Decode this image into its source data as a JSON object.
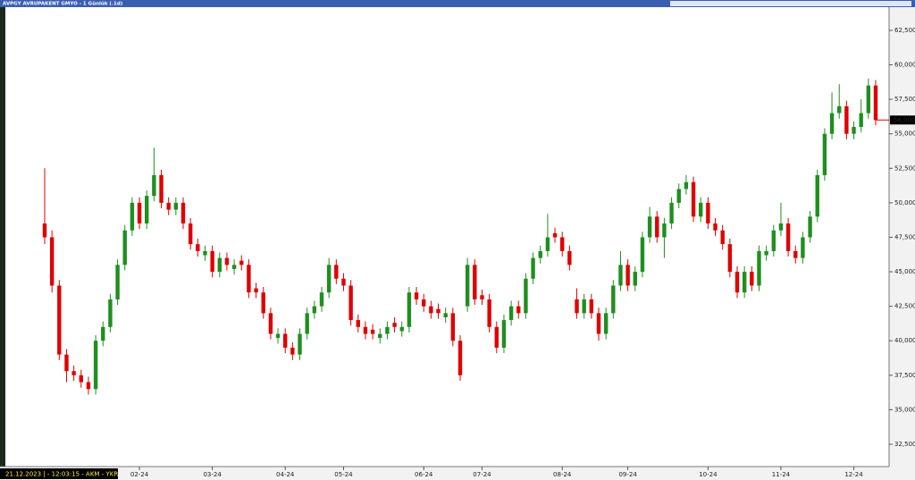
{
  "header": {
    "title": "AVPGY AVRUPAKENT GMYO - 1 Günlük (.1d)"
  },
  "status": "21.12.2023 | - 12:03:15 - AKM - YKR",
  "chart_data": {
    "type": "candlestick",
    "up_color": "#1f8f1f",
    "down_color": "#e00000",
    "last_price": {
      "value": 56000,
      "label": "56,000"
    },
    "ylim": [
      30880,
      64180
    ],
    "yticks": [
      {
        "value": 32500,
        "label": "32,500"
      },
      {
        "value": 35000,
        "label": "35,000"
      },
      {
        "value": 37500,
        "label": "37,500"
      },
      {
        "value": 40000,
        "label": "40,000"
      },
      {
        "value": 42500,
        "label": "42,500"
      },
      {
        "value": 45000,
        "label": "45,000"
      },
      {
        "value": 47500,
        "label": "47,500"
      },
      {
        "value": 50000,
        "label": "50,000"
      },
      {
        "value": 52500,
        "label": "52,500"
      },
      {
        "value": 55000,
        "label": "55,000"
      },
      {
        "value": 57500,
        "label": "57,500"
      },
      {
        "value": 60000,
        "label": "60,000"
      },
      {
        "value": 62500,
        "label": "62,500"
      }
    ],
    "categories": [
      null,
      null,
      null,
      null,
      null,
      null,
      null,
      null,
      null,
      null,
      null,
      null,
      null,
      "02-24",
      null,
      null,
      null,
      null,
      null,
      null,
      null,
      null,
      null,
      "03-24",
      null,
      null,
      null,
      null,
      null,
      null,
      null,
      null,
      null,
      "04-24",
      null,
      null,
      null,
      null,
      null,
      null,
      null,
      "05-24",
      null,
      null,
      null,
      null,
      null,
      null,
      null,
      null,
      null,
      null,
      "06-24",
      null,
      null,
      null,
      null,
      null,
      null,
      null,
      "07-24",
      null,
      null,
      null,
      null,
      null,
      null,
      null,
      null,
      null,
      null,
      "08-24",
      null,
      null,
      null,
      null,
      null,
      null,
      null,
      null,
      "09-24",
      null,
      null,
      null,
      null,
      null,
      null,
      null,
      null,
      null,
      null,
      "10-24",
      null,
      null,
      null,
      null,
      null,
      null,
      null,
      null,
      null,
      "11-24",
      null,
      null,
      null,
      null,
      null,
      null,
      null,
      null,
      null,
      "12-24",
      null,
      null,
      null
    ],
    "open": [
      48500,
      47500,
      44000,
      39000,
      37800,
      37500,
      37000,
      36500,
      40000,
      41000,
      43000,
      45500,
      48000,
      50000,
      48500,
      50500,
      52000,
      50000,
      49500,
      50000,
      48500,
      47000,
      46200,
      46500,
      45000,
      46000,
      45200,
      45800,
      45500,
      43800,
      43500,
      42000,
      40200,
      40500,
      39500,
      39000,
      40500,
      42000,
      42500,
      43500,
      45500,
      44500,
      44000,
      41500,
      41000,
      40800,
      40200,
      40500,
      41300,
      40700,
      41000,
      43500,
      43000,
      42500,
      42300,
      41700,
      42000,
      40000,
      42500,
      45500,
      43300,
      43000,
      41000,
      39500,
      41500,
      42500,
      42000,
      44500,
      46000,
      46500,
      47800,
      47500,
      46500,
      43000,
      42000,
      43000,
      42000,
      40500,
      42000,
      44000,
      45500,
      44000,
      45000,
      47500,
      49000,
      47500,
      48500,
      50000,
      51000,
      51500,
      49000,
      50000,
      48500,
      48000,
      47000,
      45000,
      43500,
      45000,
      44000,
      46200,
      46500,
      48000,
      48500,
      46500,
      46000,
      47500,
      49000,
      52000,
      55000,
      56500,
      57000,
      55000,
      55500,
      56500,
      58500
    ],
    "high": [
      52500,
      48000,
      44400,
      39400,
      38200,
      37900,
      37400,
      40400,
      41400,
      43400,
      45900,
      48400,
      50400,
      50400,
      50900,
      54000,
      52400,
      50400,
      50400,
      50400,
      48900,
      47400,
      46900,
      46900,
      46400,
      46400,
      45900,
      46200,
      45900,
      44200,
      43900,
      42400,
      40900,
      40900,
      39900,
      40900,
      42400,
      42900,
      43900,
      46000,
      45900,
      44900,
      44400,
      41900,
      41400,
      41200,
      40900,
      41400,
      41700,
      41400,
      43900,
      43900,
      43400,
      42900,
      42700,
      42400,
      42400,
      40400,
      46000,
      45900,
      43700,
      43400,
      41400,
      41900,
      42900,
      42900,
      44900,
      46400,
      46900,
      49200,
      48200,
      47900,
      46900,
      43800,
      43400,
      43400,
      42400,
      42400,
      44400,
      46500,
      45900,
      45400,
      47900,
      49700,
      49400,
      48900,
      50400,
      51400,
      52000,
      51900,
      50400,
      50400,
      48900,
      48400,
      47400,
      45400,
      45400,
      45400,
      46900,
      46900,
      48400,
      50000,
      48900,
      46900,
      47900,
      49400,
      52400,
      55400,
      58000,
      58600,
      57400,
      55900,
      57500,
      59000,
      58900
    ],
    "low": [
      47000,
      43500,
      38600,
      37000,
      37100,
      36600,
      36100,
      36100,
      39600,
      40600,
      42600,
      45100,
      47600,
      48100,
      48100,
      50100,
      49600,
      49100,
      49100,
      48100,
      46600,
      46100,
      45800,
      44600,
      44600,
      45100,
      44800,
      45100,
      43100,
      43100,
      41600,
      40100,
      39800,
      39100,
      38600,
      38600,
      40100,
      41600,
      42100,
      43100,
      44100,
      43600,
      41100,
      40600,
      40100,
      40100,
      39800,
      40100,
      40600,
      40300,
      40600,
      42600,
      42100,
      41600,
      41600,
      41300,
      39600,
      37100,
      42100,
      42600,
      42600,
      40600,
      39100,
      39100,
      41100,
      41600,
      41600,
      44100,
      45600,
      46100,
      47100,
      46100,
      45100,
      41600,
      41600,
      41600,
      40000,
      40100,
      41600,
      43600,
      43600,
      43600,
      44600,
      47100,
      47100,
      46000,
      48100,
      49600,
      50600,
      48600,
      48600,
      48100,
      47600,
      46600,
      44600,
      43100,
      43100,
      43600,
      43600,
      45800,
      46100,
      47600,
      46100,
      45600,
      45600,
      47100,
      48600,
      51600,
      54600,
      56100,
      54600,
      54600,
      55100,
      56100,
      55600
    ],
    "close": [
      47500,
      44000,
      39000,
      37800,
      37500,
      37000,
      36500,
      40000,
      41000,
      43000,
      45500,
      48000,
      50000,
      48500,
      50500,
      52000,
      50000,
      49500,
      50000,
      48500,
      47000,
      46500,
      46500,
      45000,
      46000,
      45500,
      45500,
      45500,
      43500,
      43500,
      42000,
      40500,
      40500,
      39500,
      39000,
      40500,
      42000,
      42500,
      43500,
      45500,
      44500,
      44000,
      41500,
      41000,
      40500,
      40500,
      40500,
      41000,
      41000,
      41000,
      43500,
      43000,
      42500,
      42000,
      42000,
      42000,
      40000,
      37500,
      45500,
      43000,
      43000,
      41000,
      39500,
      41500,
      42500,
      42000,
      44500,
      46000,
      46500,
      47500,
      47500,
      46500,
      45500,
      42000,
      43000,
      42000,
      40500,
      42000,
      44000,
      45500,
      44000,
      45000,
      47500,
      49000,
      47500,
      48500,
      50000,
      51000,
      51500,
      49000,
      50000,
      48500,
      48000,
      47000,
      45000,
      43500,
      45000,
      44000,
      46500,
      46500,
      48000,
      48500,
      46500,
      46000,
      47500,
      49000,
      52000,
      55000,
      56500,
      57000,
      55000,
      55500,
      56500,
      58500,
      56000
    ]
  }
}
